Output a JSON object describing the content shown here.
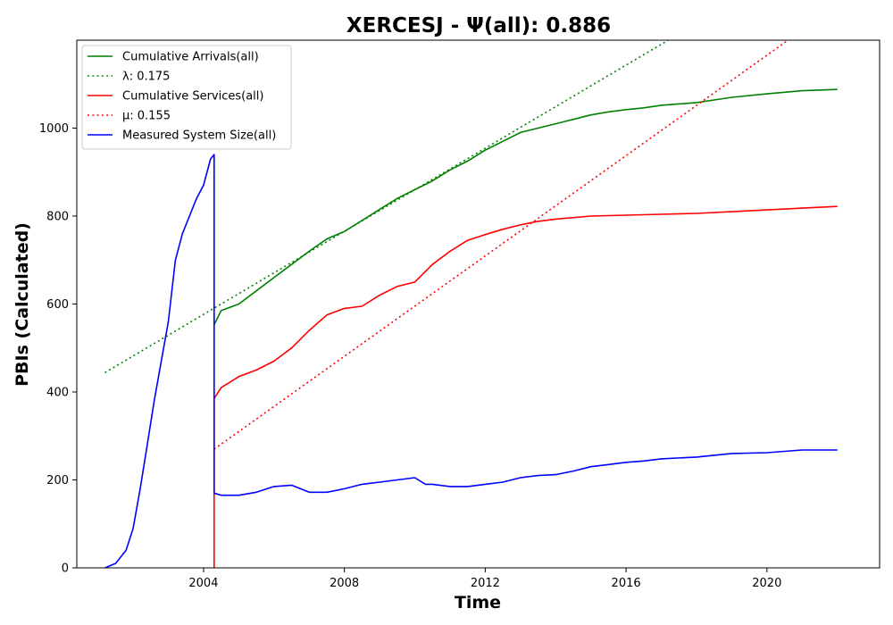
{
  "chart_data": {
    "type": "line",
    "title": "XERCESJ -  Ψ(all): 0.886",
    "xlabel": "Time",
    "ylabel": "PBIs (Calculated)",
    "xlim": [
      2000.4,
      2023.2
    ],
    "ylim": [
      0,
      1200
    ],
    "xticks": [
      2004,
      2008,
      2012,
      2016,
      2020
    ],
    "yticks": [
      0,
      200,
      400,
      600,
      800,
      1000
    ],
    "grid": false,
    "legend_position": "top-left",
    "series": [
      {
        "name": "Cumulative Arrivals(all)",
        "color": "#008000",
        "style": "solid",
        "x": [
          2004.3,
          2004.5,
          2005.0,
          2005.5,
          2006.0,
          2006.5,
          2007.0,
          2007.5,
          2008.0,
          2008.5,
          2009.0,
          2009.5,
          2010.0,
          2010.5,
          2011.0,
          2011.5,
          2012.0,
          2012.5,
          2013.0,
          2013.5,
          2014.0,
          2014.5,
          2015.0,
          2015.5,
          2016.0,
          2016.5,
          2017.0,
          2018.0,
          2019.0,
          2020.0,
          2021.0,
          2022.0
        ],
        "y": [
          553,
          585,
          600,
          630,
          660,
          690,
          720,
          748,
          765,
          790,
          815,
          840,
          860,
          880,
          905,
          925,
          950,
          970,
          990,
          1000,
          1010,
          1020,
          1030,
          1037,
          1042,
          1046,
          1052,
          1058,
          1070,
          1078,
          1085,
          1088
        ]
      },
      {
        "name": "λ: 0.175",
        "color": "#008000",
        "style": "dotted",
        "x": [
          2001.2,
          2017.2
        ],
        "y": [
          444,
          1200
        ]
      },
      {
        "name": "Cumulative Services(all)",
        "color": "#ff0000",
        "style": "solid",
        "x": [
          2004.3,
          2004.3,
          2004.5,
          2005.0,
          2005.5,
          2006.0,
          2006.5,
          2007.0,
          2007.5,
          2008.0,
          2008.5,
          2009.0,
          2009.5,
          2010.0,
          2010.5,
          2011.0,
          2011.5,
          2012.0,
          2012.5,
          2013.0,
          2013.5,
          2014.0,
          2015.0,
          2016.0,
          2017.0,
          2018.0,
          2019.0,
          2020.0,
          2021.0,
          2022.0
        ],
        "y": [
          0,
          385,
          410,
          435,
          450,
          470,
          500,
          540,
          575,
          590,
          595,
          620,
          640,
          650,
          690,
          720,
          745,
          758,
          770,
          780,
          788,
          793,
          800,
          802,
          804,
          806,
          810,
          814,
          818,
          822
        ]
      },
      {
        "name": "μ: 0.155",
        "color": "#ff0000",
        "style": "dotted",
        "x": [
          2004.3,
          2020.6
        ],
        "y": [
          270,
          1200
        ]
      },
      {
        "name": "Measured System Size(all)",
        "color": "#0000ff",
        "style": "solid",
        "x": [
          2001.2,
          2001.5,
          2001.8,
          2002.0,
          2002.2,
          2002.4,
          2002.6,
          2002.8,
          2003.0,
          2003.2,
          2003.4,
          2003.6,
          2003.8,
          2004.0,
          2004.2,
          2004.3,
          2004.3,
          2004.5,
          2005.0,
          2005.5,
          2006.0,
          2006.5,
          2007.0,
          2007.5,
          2008.0,
          2008.5,
          2009.0,
          2009.5,
          2010.0,
          2010.3,
          2010.5,
          2011.0,
          2011.5,
          2012.0,
          2012.5,
          2013.0,
          2013.5,
          2014.0,
          2014.5,
          2015.0,
          2015.5,
          2016.0,
          2016.5,
          2017.0,
          2018.0,
          2019.0,
          2020.0,
          2021.0,
          2022.0
        ],
        "y": [
          0,
          10,
          40,
          90,
          180,
          280,
          380,
          470,
          560,
          700,
          760,
          800,
          840,
          870,
          930,
          940,
          170,
          165,
          165,
          172,
          185,
          188,
          172,
          172,
          180,
          190,
          195,
          200,
          205,
          190,
          190,
          185,
          185,
          190,
          195,
          205,
          210,
          212,
          220,
          230,
          235,
          240,
          243,
          248,
          252,
          260,
          262,
          268,
          268
        ]
      }
    ]
  }
}
